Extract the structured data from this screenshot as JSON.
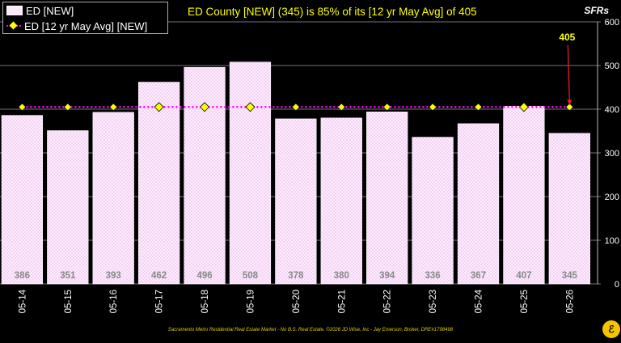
{
  "chart_data": {
    "type": "bar",
    "title": "ED County [NEW] (345) is 85% of its [12 yr May Avg] of 405",
    "units_label": "SFRs",
    "categories": [
      "05-14",
      "05-15",
      "05-16",
      "05-17",
      "05-18",
      "05-19",
      "05-20",
      "05-21",
      "05-22",
      "05-23",
      "05-24",
      "05-25",
      "05-26"
    ],
    "series": [
      {
        "name": "ED [NEW]",
        "type": "bar",
        "color": "#fbe9fb",
        "values": [
          386,
          351,
          393,
          462,
          496,
          508,
          378,
          380,
          394,
          336,
          367,
          407,
          345
        ]
      },
      {
        "name": "ED [12 yr May Avg] [NEW]",
        "type": "line",
        "color": "#ff00ff",
        "marker_color": "#ffff00",
        "values": [
          405,
          405,
          405,
          405,
          405,
          405,
          405,
          405,
          405,
          405,
          405,
          405,
          405
        ]
      }
    ],
    "callout": {
      "text": "405",
      "category": "05-26",
      "color": "#ffff00",
      "arrow_color": "#e02020"
    },
    "yaxis": {
      "position": "right",
      "ylim": [
        0,
        600
      ],
      "ticks": [
        0,
        100,
        200,
        300,
        400,
        500,
        600
      ]
    },
    "grid": true,
    "legend_position": "top-left"
  },
  "footer": "Sacramento Metro Residential Real Estate Market - No B.S. Real Estate. ©2026 JD Wise, Inc - Jay Emerson, Broker, DRE#1798498",
  "logo_text": "ℰ"
}
